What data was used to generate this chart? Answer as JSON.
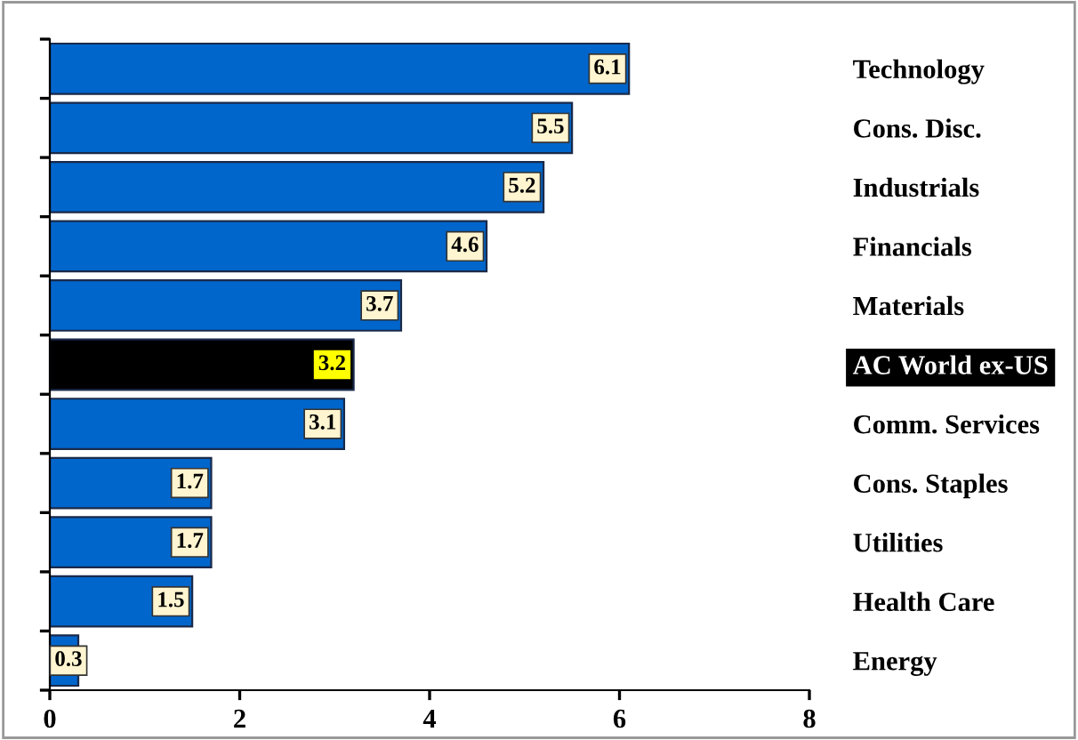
{
  "chart_data": {
    "type": "bar",
    "orientation": "horizontal",
    "categories": [
      "Technology",
      "Cons. Disc.",
      "Industrials",
      "Financials",
      "Materials",
      "AC World ex-US",
      "Comm. Services",
      "Cons. Staples",
      "Utilities",
      "Health Care",
      "Energy"
    ],
    "values": [
      6.1,
      5.5,
      5.2,
      4.6,
      3.7,
      3.2,
      3.1,
      1.7,
      1.7,
      1.5,
      0.3
    ],
    "colors": [
      "#0066cc",
      "#0066cc",
      "#0066cc",
      "#0066cc",
      "#0066cc",
      "#000000",
      "#0066cc",
      "#0066cc",
      "#0066cc",
      "#0066cc",
      "#0066cc"
    ],
    "data_labels": true,
    "xlim": [
      0,
      8
    ],
    "xticks": [
      0,
      2,
      4,
      6,
      8
    ],
    "grid": false,
    "legend": false
  }
}
